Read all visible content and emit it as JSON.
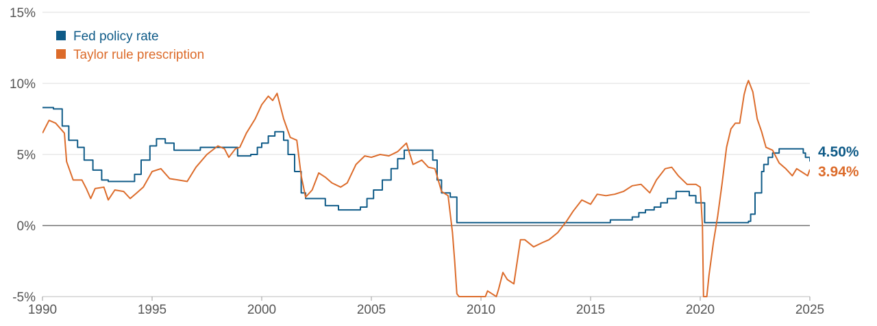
{
  "chart_data": {
    "type": "line",
    "title": "",
    "xlabel": "",
    "ylabel": "",
    "xlim": [
      1990,
      2025
    ],
    "ylim": [
      -5,
      15
    ],
    "grid": true,
    "legend_position": "top-left",
    "x_ticks": [
      "1990",
      "1995",
      "2000",
      "2005",
      "2010",
      "2015",
      "2020",
      "2025"
    ],
    "y_ticks": [
      "-5%",
      "0%",
      "5%",
      "10%",
      "15%"
    ],
    "series": [
      {
        "name": "Fed policy rate",
        "color": "#0e5a87",
        "step": true,
        "end_label": "4.50%",
        "points": [
          [
            1990.0,
            8.3
          ],
          [
            1990.5,
            8.2
          ],
          [
            1990.9,
            7.0
          ],
          [
            1991.2,
            6.0
          ],
          [
            1991.6,
            5.5
          ],
          [
            1991.9,
            4.6
          ],
          [
            1992.3,
            3.9
          ],
          [
            1992.7,
            3.2
          ],
          [
            1993.0,
            3.1
          ],
          [
            1994.0,
            3.1
          ],
          [
            1994.2,
            3.6
          ],
          [
            1994.5,
            4.6
          ],
          [
            1994.9,
            5.6
          ],
          [
            1995.2,
            6.1
          ],
          [
            1995.6,
            5.8
          ],
          [
            1996.0,
            5.3
          ],
          [
            1996.6,
            5.3
          ],
          [
            1997.2,
            5.5
          ],
          [
            1998.7,
            5.5
          ],
          [
            1998.9,
            4.9
          ],
          [
            1999.5,
            5.0
          ],
          [
            1999.8,
            5.5
          ],
          [
            2000.0,
            5.8
          ],
          [
            2000.3,
            6.3
          ],
          [
            2000.6,
            6.6
          ],
          [
            2001.0,
            6.0
          ],
          [
            2001.2,
            5.0
          ],
          [
            2001.5,
            3.8
          ],
          [
            2001.8,
            2.3
          ],
          [
            2002.0,
            1.9
          ],
          [
            2002.9,
            1.4
          ],
          [
            2003.5,
            1.1
          ],
          [
            2004.5,
            1.3
          ],
          [
            2004.8,
            1.9
          ],
          [
            2005.1,
            2.5
          ],
          [
            2005.5,
            3.2
          ],
          [
            2005.9,
            4.0
          ],
          [
            2006.2,
            4.7
          ],
          [
            2006.5,
            5.3
          ],
          [
            2007.6,
            5.3
          ],
          [
            2007.8,
            4.6
          ],
          [
            2008.0,
            3.2
          ],
          [
            2008.2,
            2.3
          ],
          [
            2008.6,
            2.0
          ],
          [
            2008.9,
            0.2
          ],
          [
            2015.9,
            0.4
          ],
          [
            2016.9,
            0.6
          ],
          [
            2017.2,
            0.9
          ],
          [
            2017.5,
            1.1
          ],
          [
            2017.9,
            1.3
          ],
          [
            2018.2,
            1.6
          ],
          [
            2018.5,
            1.9
          ],
          [
            2018.9,
            2.4
          ],
          [
            2019.5,
            2.1
          ],
          [
            2019.8,
            1.6
          ],
          [
            2020.2,
            0.2
          ],
          [
            2022.2,
            0.3
          ],
          [
            2022.3,
            0.8
          ],
          [
            2022.5,
            2.3
          ],
          [
            2022.8,
            3.8
          ],
          [
            2022.9,
            4.3
          ],
          [
            2023.1,
            4.8
          ],
          [
            2023.3,
            5.1
          ],
          [
            2023.6,
            5.4
          ],
          [
            2024.7,
            5.1
          ],
          [
            2024.8,
            4.8
          ],
          [
            2025.0,
            4.5
          ]
        ]
      },
      {
        "name": "Taylor rule prescription",
        "color": "#dc6b2a",
        "step": false,
        "end_label": "3.94%",
        "points": [
          [
            1990.0,
            6.5
          ],
          [
            1990.3,
            7.4
          ],
          [
            1990.6,
            7.2
          ],
          [
            1991.0,
            6.5
          ],
          [
            1991.1,
            4.5
          ],
          [
            1991.4,
            3.2
          ],
          [
            1991.8,
            3.2
          ],
          [
            1992.0,
            2.6
          ],
          [
            1992.2,
            1.9
          ],
          [
            1992.4,
            2.6
          ],
          [
            1992.8,
            2.7
          ],
          [
            1993.0,
            1.8
          ],
          [
            1993.3,
            2.5
          ],
          [
            1993.7,
            2.4
          ],
          [
            1994.0,
            1.9
          ],
          [
            1994.3,
            2.3
          ],
          [
            1994.6,
            2.7
          ],
          [
            1995.0,
            3.8
          ],
          [
            1995.4,
            4.0
          ],
          [
            1995.8,
            3.3
          ],
          [
            1996.2,
            3.2
          ],
          [
            1996.6,
            3.1
          ],
          [
            1997.0,
            4.1
          ],
          [
            1997.5,
            5.0
          ],
          [
            1998.0,
            5.6
          ],
          [
            1998.3,
            5.4
          ],
          [
            1998.5,
            4.8
          ],
          [
            1998.8,
            5.4
          ],
          [
            1999.0,
            5.5
          ],
          [
            1999.3,
            6.5
          ],
          [
            1999.7,
            7.5
          ],
          [
            2000.0,
            8.5
          ],
          [
            2000.3,
            9.1
          ],
          [
            2000.5,
            8.8
          ],
          [
            2000.7,
            9.3
          ],
          [
            2001.0,
            7.5
          ],
          [
            2001.3,
            6.2
          ],
          [
            2001.6,
            6.0
          ],
          [
            2001.8,
            3.5
          ],
          [
            2002.0,
            2.0
          ],
          [
            2002.3,
            2.5
          ],
          [
            2002.6,
            3.7
          ],
          [
            2002.9,
            3.4
          ],
          [
            2003.2,
            3.0
          ],
          [
            2003.6,
            2.7
          ],
          [
            2003.9,
            3.0
          ],
          [
            2004.3,
            4.3
          ],
          [
            2004.7,
            4.9
          ],
          [
            2005.0,
            4.8
          ],
          [
            2005.4,
            5.0
          ],
          [
            2005.8,
            4.9
          ],
          [
            2006.2,
            5.2
          ],
          [
            2006.6,
            5.8
          ],
          [
            2006.9,
            4.3
          ],
          [
            2007.3,
            4.6
          ],
          [
            2007.6,
            4.1
          ],
          [
            2007.9,
            4.0
          ],
          [
            2008.2,
            2.4
          ],
          [
            2008.5,
            2.1
          ],
          [
            2008.7,
            -0.5
          ],
          [
            2008.8,
            -2.5
          ],
          [
            2008.9,
            -4.8
          ],
          [
            2009.0,
            -5.0
          ],
          [
            2010.2,
            -5.0
          ],
          [
            2010.3,
            -4.6
          ],
          [
            2010.5,
            -4.8
          ],
          [
            2010.7,
            -5.0
          ],
          [
            2010.8,
            -4.5
          ],
          [
            2011.0,
            -3.3
          ],
          [
            2011.2,
            -3.8
          ],
          [
            2011.5,
            -4.1
          ],
          [
            2011.8,
            -1.0
          ],
          [
            2012.0,
            -1.0
          ],
          [
            2012.4,
            -1.5
          ],
          [
            2012.8,
            -1.2
          ],
          [
            2013.1,
            -1.0
          ],
          [
            2013.5,
            -0.5
          ],
          [
            2013.9,
            0.3
          ],
          [
            2014.2,
            1.0
          ],
          [
            2014.6,
            1.8
          ],
          [
            2015.0,
            1.5
          ],
          [
            2015.3,
            2.2
          ],
          [
            2015.7,
            2.1
          ],
          [
            2016.1,
            2.2
          ],
          [
            2016.5,
            2.4
          ],
          [
            2016.9,
            2.8
          ],
          [
            2017.3,
            2.9
          ],
          [
            2017.7,
            2.3
          ],
          [
            2018.0,
            3.2
          ],
          [
            2018.4,
            4.0
          ],
          [
            2018.7,
            4.1
          ],
          [
            2019.0,
            3.5
          ],
          [
            2019.4,
            2.9
          ],
          [
            2019.8,
            2.9
          ],
          [
            2020.0,
            2.7
          ],
          [
            2020.1,
            0.0
          ],
          [
            2020.15,
            -5.0
          ],
          [
            2020.3,
            -5.0
          ],
          [
            2020.4,
            -3.5
          ],
          [
            2020.6,
            -1.2
          ],
          [
            2020.8,
            0.7
          ],
          [
            2021.0,
            3.0
          ],
          [
            2021.2,
            5.5
          ],
          [
            2021.4,
            6.8
          ],
          [
            2021.6,
            7.2
          ],
          [
            2021.8,
            7.2
          ],
          [
            2022.0,
            9.2
          ],
          [
            2022.1,
            9.8
          ],
          [
            2022.2,
            10.2
          ],
          [
            2022.4,
            9.4
          ],
          [
            2022.6,
            7.5
          ],
          [
            2022.8,
            6.6
          ],
          [
            2023.0,
            5.5
          ],
          [
            2023.3,
            5.3
          ],
          [
            2023.6,
            4.4
          ],
          [
            2023.9,
            4.0
          ],
          [
            2024.2,
            3.5
          ],
          [
            2024.4,
            4.0
          ],
          [
            2024.7,
            3.7
          ],
          [
            2024.9,
            3.5
          ],
          [
            2025.0,
            3.94
          ]
        ]
      }
    ]
  }
}
